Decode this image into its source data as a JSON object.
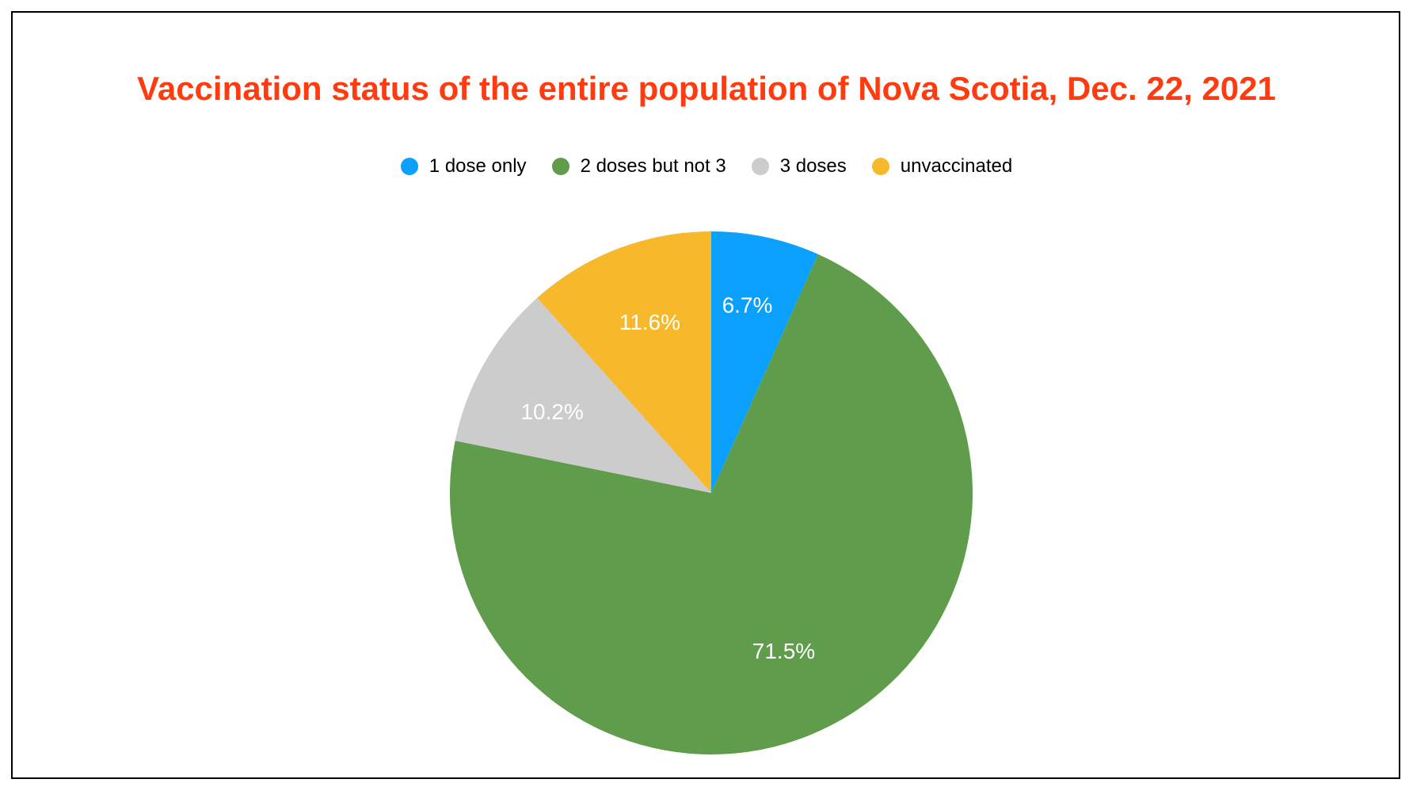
{
  "chart_data": {
    "type": "pie",
    "title": "Vaccination status of the entire population of Nova Scotia, Dec. 22, 2021",
    "legend_position": "top-center",
    "start_angle_deg": 0,
    "direction": "clockwise",
    "slices": [
      {
        "name": "1 dose only",
        "value": 6.7,
        "label": "6.7%",
        "color": "#0aa0fc"
      },
      {
        "name": "2 doses but not 3",
        "value": 71.5,
        "label": "71.5%",
        "color": "#5f9c4b"
      },
      {
        "name": "3 doses",
        "value": 10.2,
        "label": "10.2%",
        "color": "#cccccc"
      },
      {
        "name": "unvaccinated",
        "value": 11.6,
        "label": "11.6%",
        "color": "#f7b92b"
      }
    ]
  },
  "colors": {
    "title": "#ff3b0f",
    "border": "#000000",
    "background": "#ffffff"
  }
}
